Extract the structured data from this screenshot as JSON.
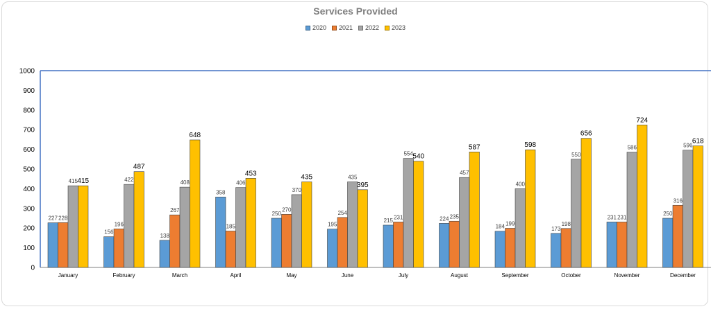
{
  "chart_data": {
    "type": "bar",
    "title": "Services Provided",
    "xlabel": "",
    "ylabel": "",
    "ylim": [
      0,
      1000
    ],
    "yticks": [
      0,
      100,
      200,
      300,
      400,
      500,
      600,
      700,
      800,
      900,
      1000
    ],
    "legend_position": "top",
    "categories": [
      "January",
      "February",
      "March",
      "April",
      "May",
      "June",
      "July",
      "August",
      "September",
      "October",
      "November",
      "December"
    ],
    "series": [
      {
        "name": "2020",
        "color": "#5b9bd5",
        "values": [
          227,
          156,
          138,
          358,
          250,
          195,
          215,
          224,
          184,
          173,
          231,
          250
        ]
      },
      {
        "name": "2021",
        "color": "#ed7d31",
        "values": [
          228,
          196,
          267,
          185,
          270,
          254,
          231,
          235,
          199,
          198,
          231,
          316
        ]
      },
      {
        "name": "2022",
        "color": "#a5a5a5",
        "values": [
          415,
          422,
          408,
          406,
          370,
          435,
          554,
          457,
          400,
          550,
          586,
          596
        ]
      },
      {
        "name": "2023",
        "color": "#ffc000",
        "values": [
          415,
          487,
          648,
          453,
          435,
          395,
          540,
          587,
          598,
          656,
          724,
          618
        ]
      }
    ]
  }
}
